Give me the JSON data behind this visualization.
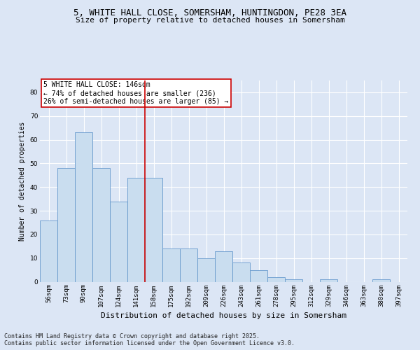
{
  "title1": "5, WHITE HALL CLOSE, SOMERSHAM, HUNTINGDON, PE28 3EA",
  "title2": "Size of property relative to detached houses in Somersham",
  "xlabel": "Distribution of detached houses by size in Somersham",
  "ylabel": "Number of detached properties",
  "categories": [
    "56sqm",
    "73sqm",
    "90sqm",
    "107sqm",
    "124sqm",
    "141sqm",
    "158sqm",
    "175sqm",
    "192sqm",
    "209sqm",
    "226sqm",
    "243sqm",
    "261sqm",
    "278sqm",
    "295sqm",
    "312sqm",
    "329sqm",
    "346sqm",
    "363sqm",
    "380sqm",
    "397sqm"
  ],
  "values": [
    26,
    48,
    63,
    48,
    34,
    44,
    44,
    14,
    14,
    10,
    13,
    8,
    5,
    2,
    1,
    0,
    1,
    0,
    0,
    1,
    0
  ],
  "bar_color": "#c9ddef",
  "bar_edge_color": "#6699cc",
  "vline_x": 5.5,
  "ylim": [
    0,
    85
  ],
  "yticks": [
    0,
    10,
    20,
    30,
    40,
    50,
    60,
    70,
    80
  ],
  "annotation_text": "5 WHITE HALL CLOSE: 146sqm\n← 74% of detached houses are smaller (236)\n26% of semi-detached houses are larger (85) →",
  "annotation_box_color": "#ffffff",
  "annotation_box_edge": "#cc0000",
  "footer": "Contains HM Land Registry data © Crown copyright and database right 2025.\nContains public sector information licensed under the Open Government Licence v3.0.",
  "background_color": "#dce6f5",
  "plot_bg_color": "#dce6f5",
  "grid_color": "#ffffff",
  "title_fontsize": 9,
  "subtitle_fontsize": 8,
  "xlabel_fontsize": 8,
  "ylabel_fontsize": 7,
  "tick_fontsize": 6.5,
  "annot_fontsize": 7,
  "footer_fontsize": 6
}
